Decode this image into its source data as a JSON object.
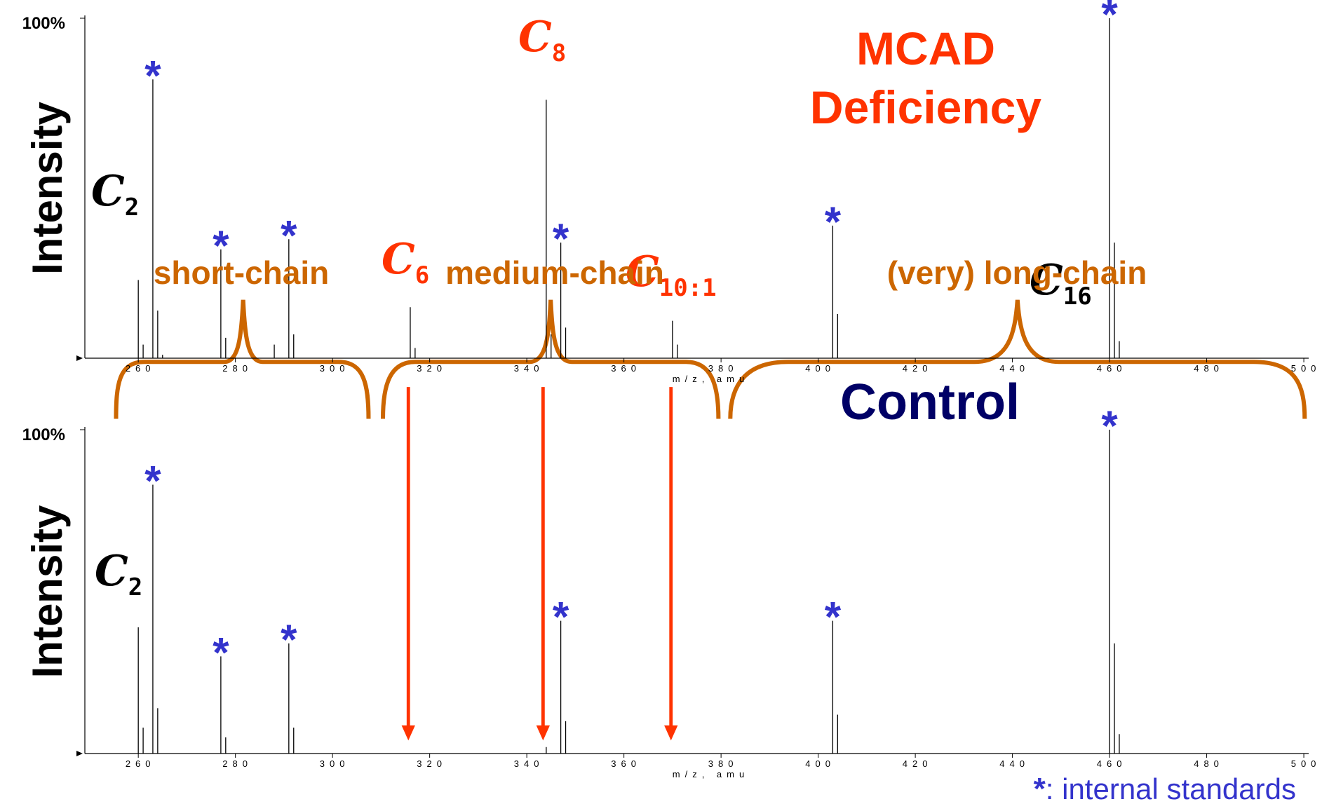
{
  "chart_data": [
    {
      "type": "bar",
      "title": [
        "MCAD",
        "Deficiency"
      ],
      "title_color": "#ff3300",
      "y_label": "Intensity",
      "x_label": "m/z, amu",
      "xlim": [
        249,
        501
      ],
      "xticks": [
        260,
        280,
        300,
        320,
        340,
        360,
        380,
        400,
        420,
        440,
        460,
        480,
        500
      ],
      "ylim": [
        0,
        100
      ],
      "yticks": [
        {
          "value": 100,
          "label": "100%"
        }
      ],
      "series": [
        {
          "color": "#000000",
          "x": [
            260,
            261,
            264,
            265,
            278,
            288,
            292,
            316,
            317,
            344,
            345,
            348,
            370,
            371,
            404,
            461,
            462
          ],
          "values": [
            23,
            4,
            14,
            1,
            6,
            4,
            7,
            15,
            3,
            76,
            7,
            9,
            11,
            4,
            13,
            34,
            5
          ]
        },
        {
          "name": "*",
          "color": "#000000",
          "label_color": "#3333cc",
          "x": [
            263,
            277,
            291,
            347,
            403,
            460
          ],
          "values": [
            82,
            32,
            35,
            34,
            39,
            100
          ]
        }
      ],
      "annotations": [
        {
          "text": "C",
          "sub": "2",
          "color": "#000000"
        },
        {
          "text": "C",
          "sub": "6",
          "color": "#ff3300"
        },
        {
          "text": "C",
          "sub": "8",
          "color": "#ff3300"
        },
        {
          "text": "C",
          "sub": "10:1",
          "color": "#ff3300"
        },
        {
          "text": "C",
          "sub": "16",
          "color": "#000000"
        }
      ],
      "regions": [
        "short-chain",
        "medium-chain",
        "(very) long-chain"
      ],
      "region_color": "#cc6600"
    },
    {
      "type": "bar",
      "title": [
        "Control"
      ],
      "title_color": "#000066",
      "y_label": "Intensity",
      "x_label": "m/z, amu",
      "xlim": [
        249,
        501
      ],
      "xticks": [
        260,
        280,
        300,
        320,
        340,
        360,
        380,
        400,
        420,
        440,
        460,
        480,
        500
      ],
      "ylim": [
        0,
        100
      ],
      "yticks": [
        {
          "value": 100,
          "label": "100%"
        }
      ],
      "series": [
        {
          "color": "#000000",
          "x": [
            260,
            261,
            264,
            278,
            292,
            344,
            348,
            404,
            461,
            462
          ],
          "values": [
            39,
            8,
            14,
            5,
            8,
            2,
            10,
            12,
            34,
            6
          ]
        },
        {
          "name": "*",
          "color": "#000000",
          "label_color": "#3333cc",
          "x": [
            263,
            277,
            291,
            347,
            403,
            460
          ],
          "values": [
            83,
            30,
            34,
            41,
            41,
            100
          ]
        }
      ],
      "annotations": [
        {
          "text": "C",
          "sub": "2",
          "color": "#000000"
        }
      ],
      "legend_text": ": internal standards"
    }
  ]
}
